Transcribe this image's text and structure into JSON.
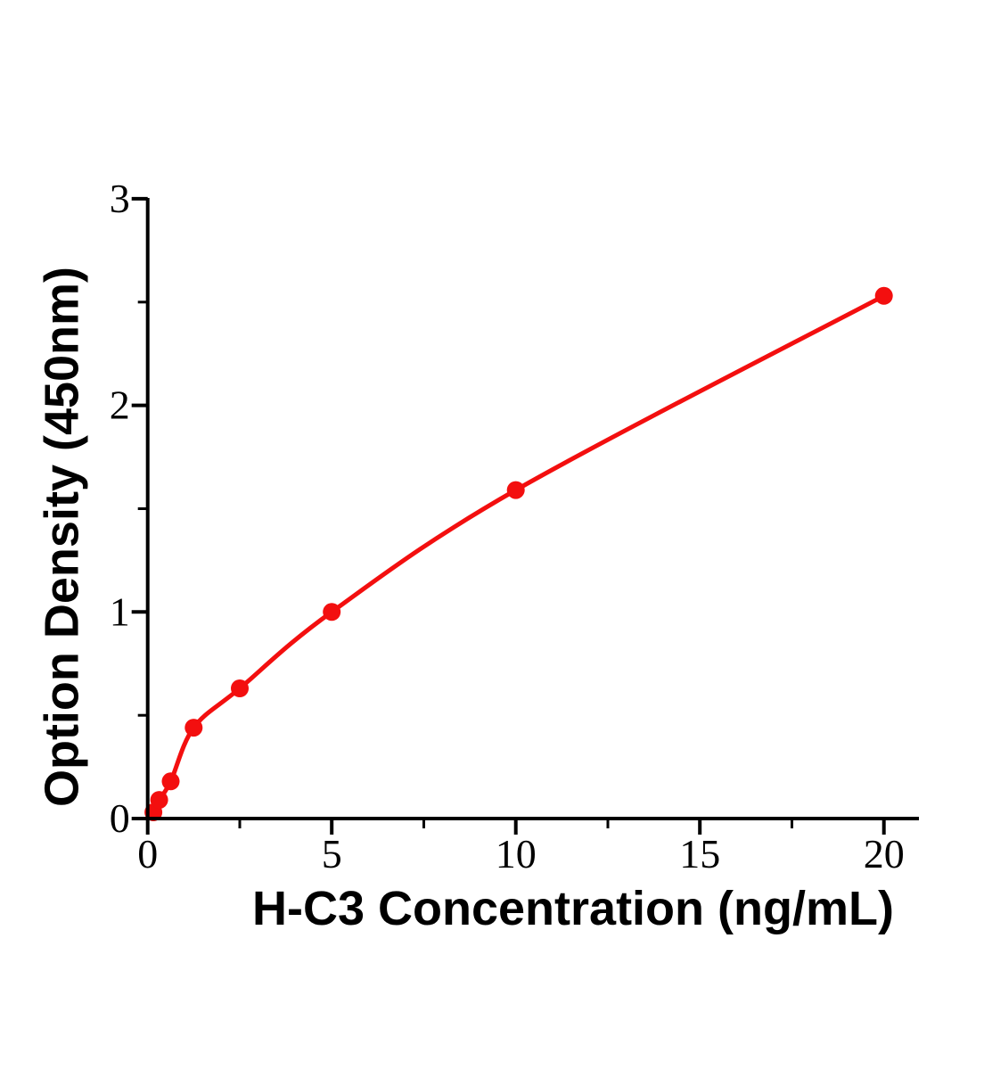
{
  "chart_data": {
    "type": "scatter",
    "title": "",
    "xlabel": "H-C3 Concentration (ng/mL)",
    "ylabel": "Option Density (450nm)",
    "series": [
      {
        "color": "#f30f0f",
        "marker": "circle",
        "line": "smooth",
        "curve_start": {
          "x": 0,
          "y": 0
        },
        "points": [
          {
            "x": 0.156,
            "y": 0.03
          },
          {
            "x": 0.3125,
            "y": 0.09
          },
          {
            "x": 0.625,
            "y": 0.18
          },
          {
            "x": 1.25,
            "y": 0.44
          },
          {
            "x": 2.5,
            "y": 0.63
          },
          {
            "x": 5,
            "y": 1.0
          },
          {
            "x": 10,
            "y": 1.59
          },
          {
            "x": 20,
            "y": 2.53
          }
        ]
      }
    ],
    "xlim": [
      0,
      21
    ],
    "ylim": [
      0,
      3
    ],
    "x_major_ticks": [
      0,
      5,
      10,
      15,
      20
    ],
    "x_minor_ticks": [
      2.5,
      7.5,
      12.5,
      17.5
    ],
    "y_major_ticks": [
      0,
      1,
      2,
      3
    ],
    "y_minor_ticks": [
      0.5,
      1.5,
      2.5
    ],
    "grid": false,
    "legend": "none",
    "axis_color": "#000000",
    "background": "#ffffff"
  }
}
